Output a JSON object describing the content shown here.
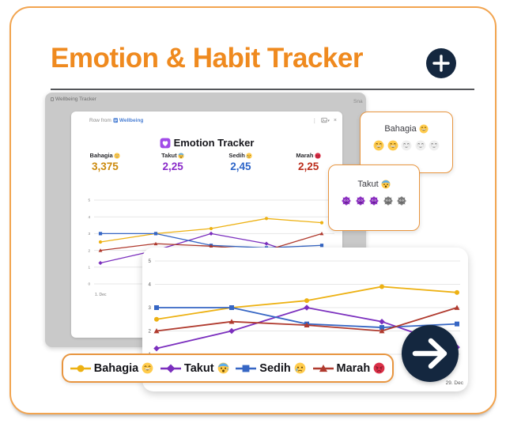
{
  "page": {
    "title": "Emotion & Habit Tracker"
  },
  "window": {
    "titlebar": "Wellbeing Tracker",
    "snap_text": "Sna",
    "toolbar": {
      "row_from": "Row from",
      "source": "Wellbeing",
      "more": "⋮",
      "chevron": "▾",
      "close": "×"
    },
    "panel_title": "Emotion Tracker"
  },
  "stats": [
    {
      "label": "Bahagia",
      "emoji": "grin",
      "value": "3,375",
      "color": "#CC8A0D"
    },
    {
      "label": "Takut",
      "emoji": "fear",
      "value": "2,25",
      "color": "#8A2BC9"
    },
    {
      "label": "Sedih",
      "emoji": "cry",
      "value": "2,45",
      "color": "#2D65C8"
    },
    {
      "label": "Marah",
      "emoji": "angry",
      "value": "2,25",
      "color": "#BB2D1C"
    }
  ],
  "chart_data": {
    "type": "line",
    "title": "Emotion Tracker",
    "x_first_label": "1. Dec",
    "x_last_label": "29. Dec",
    "ylim": [
      0,
      5
    ],
    "yticks": [
      0,
      1,
      2,
      3,
      4,
      5
    ],
    "grid": true,
    "legend_position": "bottom",
    "series": [
      {
        "name": "Bahagia",
        "color": "#EDB112",
        "marker": "circle",
        "values": [
          2.5,
          3.0,
          3.3,
          3.9,
          3.65
        ]
      },
      {
        "name": "Takut",
        "color": "#7B2FBE",
        "marker": "diamond",
        "values": [
          1.25,
          2.0,
          3.0,
          2.4,
          1.3
        ]
      },
      {
        "name": "Sedih",
        "color": "#3666C4",
        "marker": "square",
        "values": [
          3.0,
          3.0,
          2.3,
          2.15,
          2.3
        ]
      },
      {
        "name": "Marah",
        "color": "#B03A2E",
        "marker": "triangle",
        "values": [
          2.0,
          2.4,
          2.25,
          2.0,
          3.0
        ]
      }
    ]
  },
  "legend": [
    {
      "label": "Bahagia",
      "emoji": "grin",
      "series": 0
    },
    {
      "label": "Takut",
      "emoji": "fear",
      "series": 1
    },
    {
      "label": "Sedih",
      "emoji": "cry",
      "series": 2
    },
    {
      "label": "Marah",
      "emoji": "angry",
      "series": 3
    }
  ],
  "rating_cards": [
    {
      "title": "Bahagia",
      "title_emoji": "grin",
      "icon": "grin",
      "active": 2,
      "total": 5
    },
    {
      "title": "Takut",
      "title_emoji": "fear",
      "icon": "monster",
      "active": 3,
      "total": 5
    }
  ],
  "colors": {
    "accent": "#EF8A1F",
    "navy": "#14273F",
    "card_border": "#E8953F"
  }
}
